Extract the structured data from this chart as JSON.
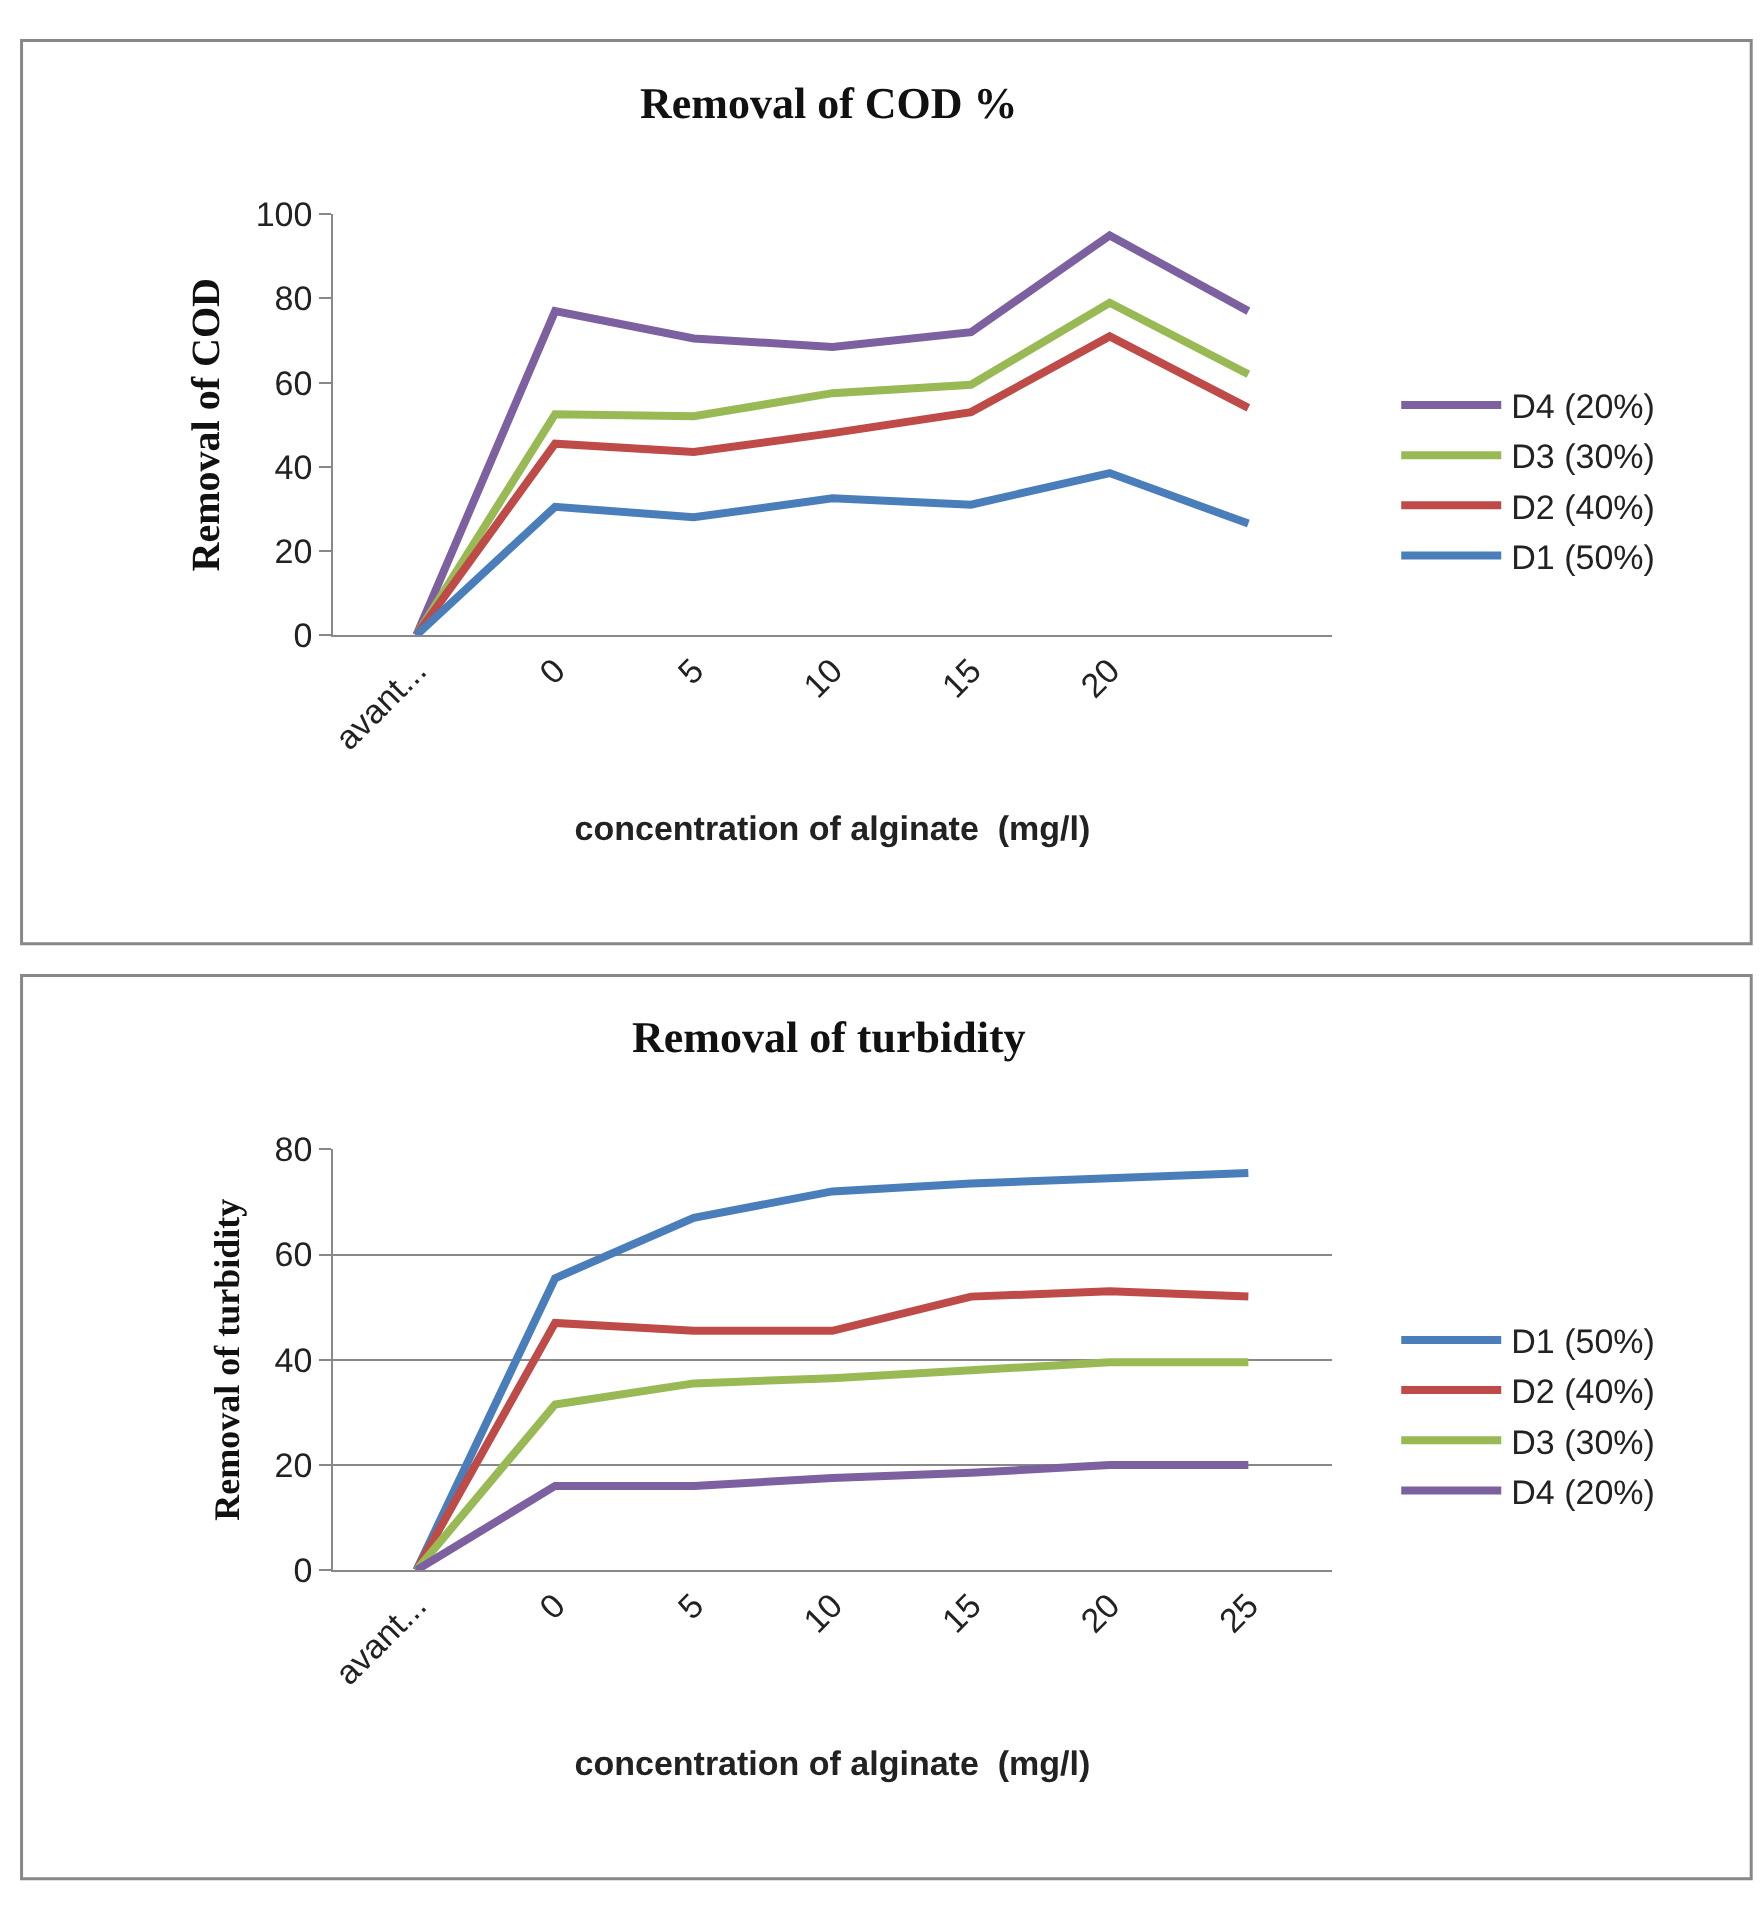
{
  "chart_data": [
    {
      "type": "line",
      "title": "Removal of COD %",
      "xlabel": "concentration of alginate  (mg/l)",
      "ylabel": "Removal of COD",
      "categories": [
        "avant...",
        "0",
        "5",
        "10",
        "15",
        "20",
        null
      ],
      "series": [
        {
          "name": "D4 (20%)",
          "color": "#7d60a0",
          "values": [
            0,
            77,
            70.5,
            68.5,
            72,
            95,
            77
          ]
        },
        {
          "name": "D3 (30%)",
          "color": "#98b954",
          "values": [
            0,
            52.5,
            52,
            57.5,
            59.5,
            79,
            62
          ]
        },
        {
          "name": "D2 (40%)",
          "color": "#be4b48",
          "values": [
            0,
            45.5,
            43.5,
            48,
            53,
            71,
            54
          ]
        },
        {
          "name": "D1 (50%)",
          "color": "#4a7ebb",
          "values": [
            0,
            30.5,
            28,
            32.5,
            31,
            38.5,
            26.5
          ]
        }
      ],
      "ylim": [
        0,
        100
      ],
      "yticks": [
        0,
        20,
        40,
        60,
        80,
        100
      ],
      "grid": false,
      "legend": "right",
      "marker": "none",
      "line_style": "solid"
    },
    {
      "type": "line",
      "title": "Removal of turbidity",
      "xlabel": "concentration of alginate  (mg/l)",
      "ylabel": "Removal of turbidity",
      "categories": [
        "avant...",
        "0",
        "5",
        "10",
        "15",
        "20",
        "25"
      ],
      "series": [
        {
          "name": "D1 (50%)",
          "color": "#4a7ebb",
          "values": [
            0,
            55.5,
            67,
            72,
            73.5,
            74.5,
            75.5
          ]
        },
        {
          "name": "D2 (40%)",
          "color": "#be4b48",
          "values": [
            0,
            47,
            45.5,
            45.5,
            52,
            53,
            52
          ]
        },
        {
          "name": "D3 (30%)",
          "color": "#98b954",
          "values": [
            0,
            31.5,
            35.5,
            36.5,
            38,
            39.5,
            39.5
          ]
        },
        {
          "name": "D4 (20%)",
          "color": "#7d60a0",
          "values": [
            0,
            16,
            16,
            17.5,
            18.5,
            20,
            20
          ]
        }
      ],
      "ylim": [
        0,
        80
      ],
      "yticks": [
        0,
        20,
        40,
        60,
        80
      ],
      "grid": "y",
      "legend": "right",
      "marker": "none",
      "line_style": "solid"
    }
  ]
}
